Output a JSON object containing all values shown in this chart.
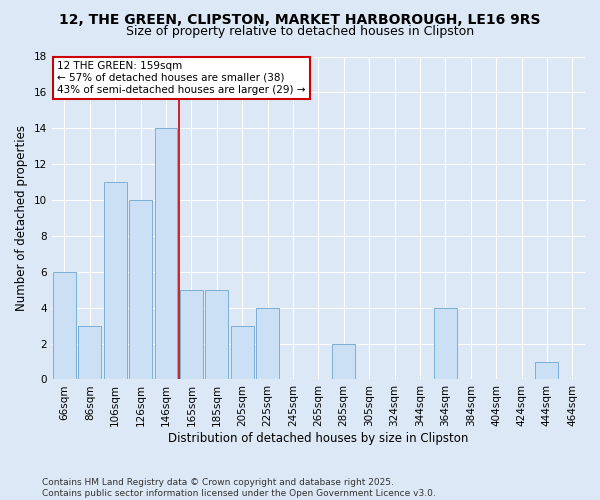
{
  "title_line1": "12, THE GREEN, CLIPSTON, MARKET HARBOROUGH, LE16 9RS",
  "title_line2": "Size of property relative to detached houses in Clipston",
  "xlabel": "Distribution of detached houses by size in Clipston",
  "ylabel": "Number of detached properties",
  "footnote": "Contains HM Land Registry data © Crown copyright and database right 2025.\nContains public sector information licensed under the Open Government Licence v3.0.",
  "categories": [
    "66sqm",
    "86sqm",
    "106sqm",
    "126sqm",
    "146sqm",
    "165sqm",
    "185sqm",
    "205sqm",
    "225sqm",
    "245sqm",
    "265sqm",
    "285sqm",
    "305sqm",
    "324sqm",
    "344sqm",
    "364sqm",
    "384sqm",
    "404sqm",
    "424sqm",
    "444sqm",
    "464sqm"
  ],
  "values": [
    6,
    3,
    11,
    10,
    14,
    5,
    5,
    3,
    4,
    0,
    0,
    2,
    0,
    0,
    0,
    4,
    0,
    0,
    0,
    1,
    0
  ],
  "bar_color": "#cce0f5",
  "bar_edge_color": "#7bafd4",
  "vline_x": 4.5,
  "vline_color": "#cc0000",
  "annotation_text": "12 THE GREEN: 159sqm\n← 57% of detached houses are smaller (38)\n43% of semi-detached houses are larger (29) →",
  "annotation_box_color": "#ffffff",
  "annotation_box_edge": "#cc0000",
  "ylim": [
    0,
    18
  ],
  "yticks": [
    0,
    2,
    4,
    6,
    8,
    10,
    12,
    14,
    16,
    18
  ],
  "bg_color": "#dce8f5",
  "grid_color": "#ffffff",
  "title_fontsize": 10,
  "subtitle_fontsize": 9,
  "axis_label_fontsize": 8.5,
  "tick_fontsize": 7.5,
  "footnote_fontsize": 6.5
}
